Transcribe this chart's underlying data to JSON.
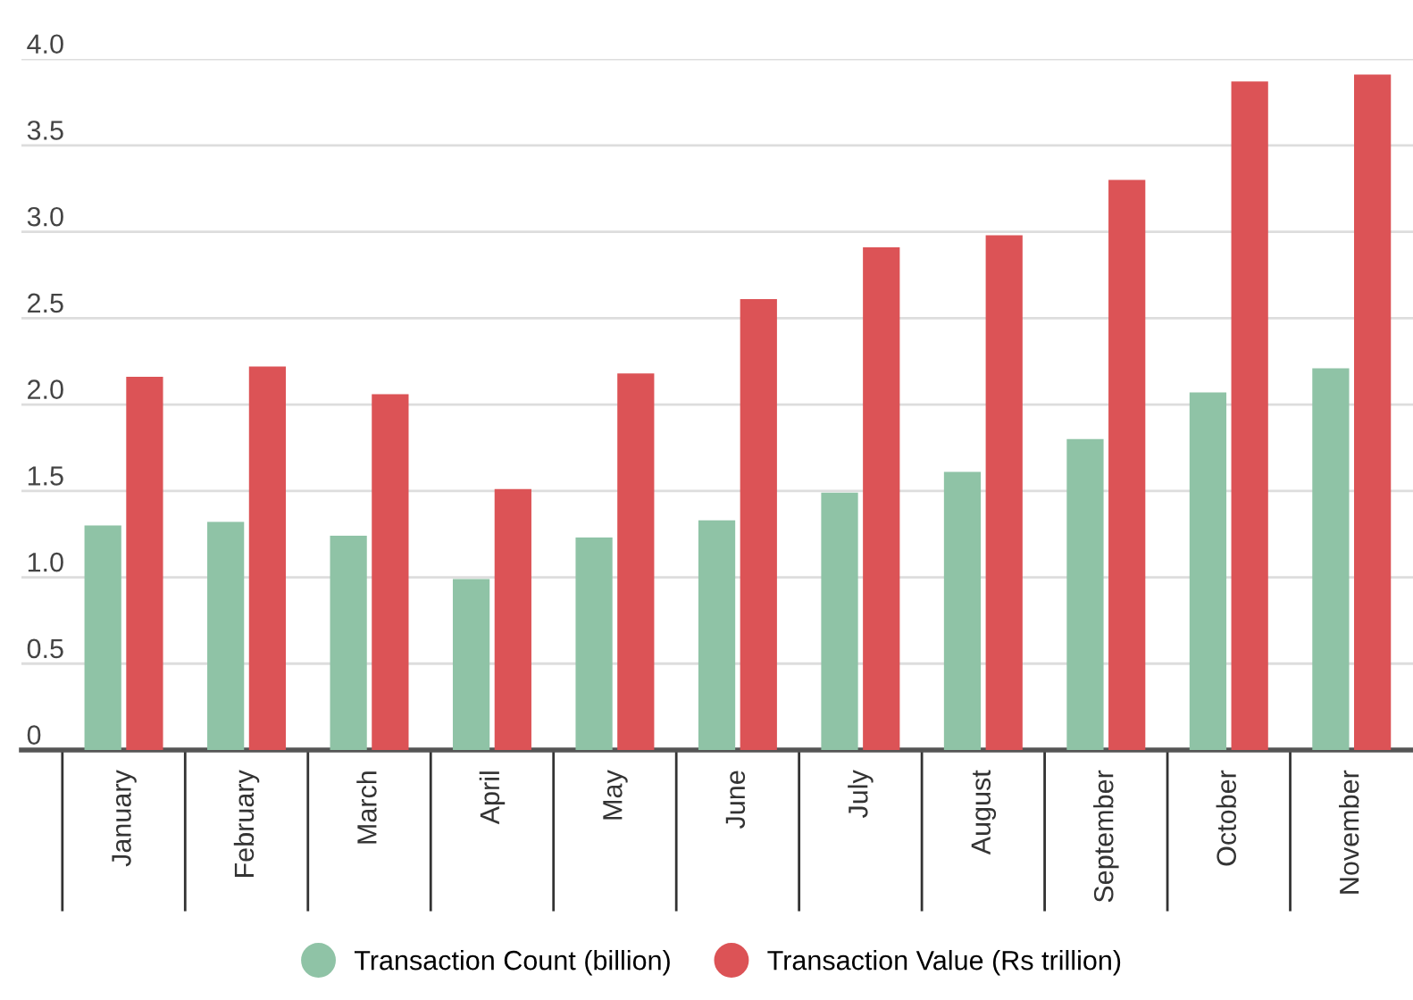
{
  "chart_data": {
    "type": "bar",
    "categories": [
      "January",
      "February",
      "March",
      "April",
      "May",
      "June",
      "July",
      "August",
      "September",
      "October",
      "November"
    ],
    "series": [
      {
        "name": "Transaction Count (billion)",
        "color": "#8fc3a6",
        "values": [
          1.3,
          1.32,
          1.24,
          0.99,
          1.23,
          1.33,
          1.49,
          1.61,
          1.8,
          2.07,
          2.21
        ]
      },
      {
        "name": "Transaction Value (Rs trillion)",
        "color": "#dc5356",
        "values": [
          2.16,
          2.22,
          2.06,
          1.51,
          2.18,
          2.61,
          2.91,
          2.98,
          3.3,
          3.87,
          3.91
        ]
      }
    ],
    "ylim": [
      0,
      4.0
    ],
    "yticks": [
      0,
      {
        "value": 0.5,
        "label": "0.5"
      },
      {
        "value": 1.0,
        "label": "1.0"
      },
      {
        "value": 1.5,
        "label": "1.5"
      },
      {
        "value": 2.0,
        "label": "2.0"
      },
      {
        "value": 2.5,
        "label": "2.5"
      },
      {
        "value": 3.0,
        "label": "3.0"
      },
      {
        "value": 3.5,
        "label": "3.5"
      },
      {
        "value": 4.0,
        "label": "4.0"
      }
    ],
    "grid": "y",
    "legend": "bottom"
  }
}
